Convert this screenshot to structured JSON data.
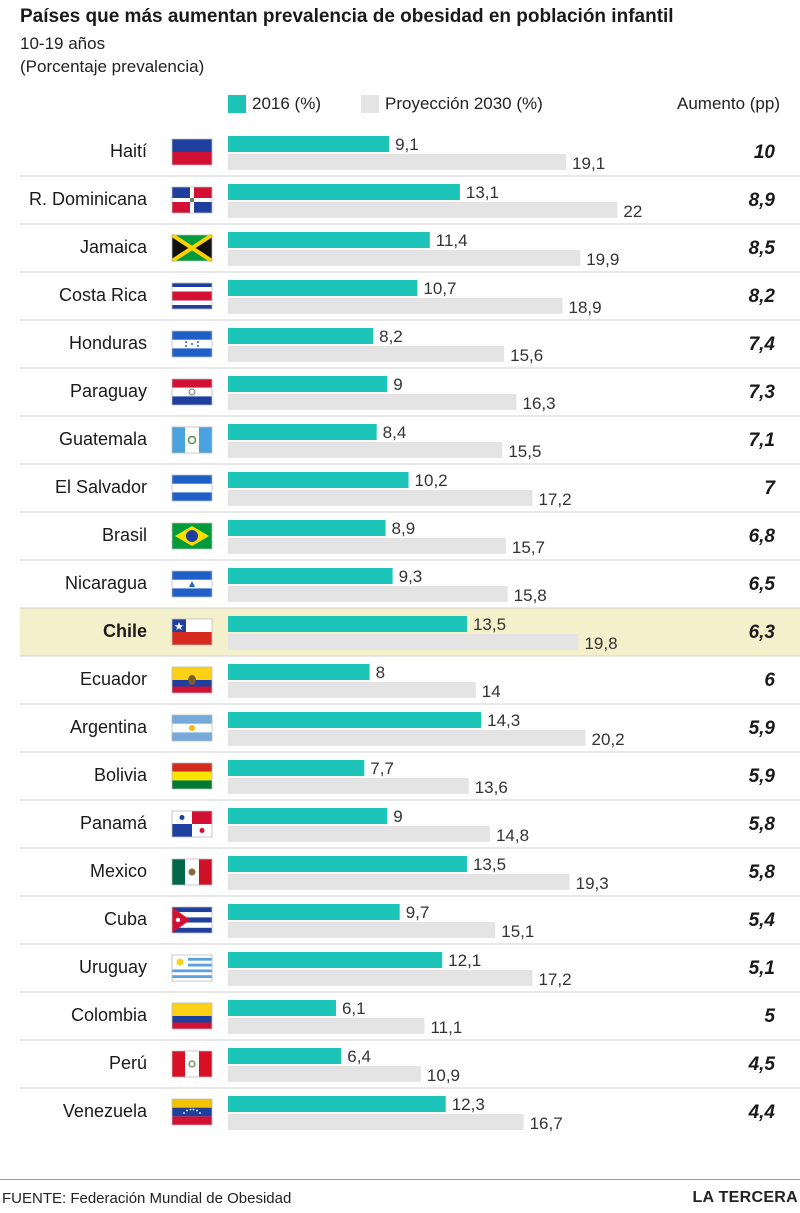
{
  "header": {
    "title": "Países que más aumentan prevalencia de obesidad en población infantil",
    "subtitle": "10-19 años",
    "unit": "(Porcentaje prevalencia)"
  },
  "legend": {
    "series_2016": "2016 (%)",
    "series_2030": "Proyección 2030 (%)",
    "increase": "Aumento (pp)"
  },
  "colors": {
    "bar_2016": "#1cc5b7",
    "bar_2030": "#e4e4e4",
    "highlight_row": "#f5f0cc",
    "divider": "#d0d0d0"
  },
  "footer": {
    "source": "FUENTE: Federación Mundial de Obesidad",
    "brand": "LA TERCERA"
  },
  "chart_data": {
    "type": "bar",
    "orientation": "horizontal",
    "highlight": "Chile",
    "categories": [
      "Haití",
      "R. Dominicana",
      "Jamaica",
      "Costa Rica",
      "Honduras",
      "Paraguay",
      "Guatemala",
      "El Salvador",
      "Brasil",
      "Nicaragua",
      "Chile",
      "Ecuador",
      "Argentina",
      "Bolivia",
      "Panamá",
      "Mexico",
      "Cuba",
      "Uruguay",
      "Colombia",
      "Perú",
      "Venezuela"
    ],
    "flags": [
      "haiti-flag-icon",
      "dominican-republic-flag-icon",
      "jamaica-flag-icon",
      "costa-rica-flag-icon",
      "honduras-flag-icon",
      "paraguay-flag-icon",
      "guatemala-flag-icon",
      "el-salvador-flag-icon",
      "brazil-flag-icon",
      "nicaragua-flag-icon",
      "chile-flag-icon",
      "ecuador-flag-icon",
      "argentina-flag-icon",
      "bolivia-flag-icon",
      "panama-flag-icon",
      "mexico-flag-icon",
      "cuba-flag-icon",
      "uruguay-flag-icon",
      "colombia-flag-icon",
      "peru-flag-icon",
      "venezuela-flag-icon"
    ],
    "series": [
      {
        "name": "2016 (%)",
        "values": [
          9.1,
          13.1,
          11.4,
          10.7,
          8.2,
          9,
          8.4,
          10.2,
          8.9,
          9.3,
          13.5,
          8,
          14.3,
          7.7,
          9,
          13.5,
          9.7,
          12.1,
          6.1,
          6.4,
          12.3
        ],
        "labels": [
          "9,1",
          "13,1",
          "11,4",
          "10,7",
          "8,2",
          "9",
          "8,4",
          "10,2",
          "8,9",
          "9,3",
          "13,5",
          "8",
          "14,3",
          "7,7",
          "9",
          "13,5",
          "9,7",
          "12,1",
          "6,1",
          "6,4",
          "12,3"
        ]
      },
      {
        "name": "Proyección 2030 (%)",
        "values": [
          19.1,
          22,
          19.9,
          18.9,
          15.6,
          16.3,
          15.5,
          17.2,
          15.7,
          15.8,
          19.8,
          14,
          20.2,
          13.6,
          14.8,
          19.3,
          15.1,
          17.2,
          11.1,
          10.9,
          16.7
        ],
        "labels": [
          "19,1",
          "22",
          "19,9",
          "18,9",
          "15,6",
          "16,3",
          "15,5",
          "17,2",
          "15,7",
          "15,8",
          "19,8",
          "14",
          "20,2",
          "13,6",
          "14,8",
          "19,3",
          "15,1",
          "17,2",
          "11,1",
          "10,9",
          "16,7"
        ]
      }
    ],
    "increase_values": [
      10,
      8.9,
      8.5,
      8.2,
      7.4,
      7.3,
      7.1,
      7,
      6.8,
      6.5,
      6.3,
      6,
      5.9,
      5.9,
      5.8,
      5.8,
      5.4,
      5.1,
      5,
      4.5,
      4.4
    ],
    "increase_labels": [
      "10",
      "8,9",
      "8,5",
      "8,2",
      "7,4",
      "7,3",
      "7,1",
      "7",
      "6,8",
      "6,5",
      "6,3",
      "6",
      "5,9",
      "5,9",
      "5,8",
      "5,8",
      "5,4",
      "5,1",
      "5",
      "4,5",
      "4,4"
    ]
  }
}
